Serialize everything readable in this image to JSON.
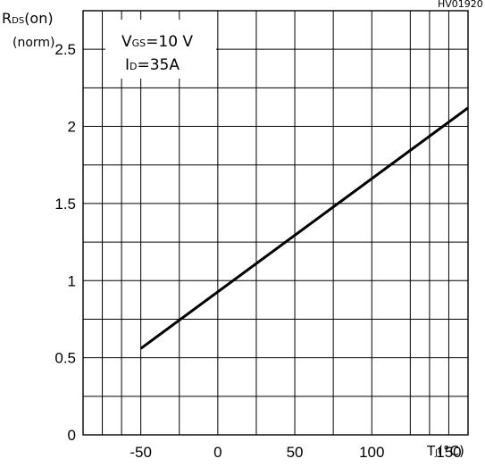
{
  "chart_data": {
    "type": "line",
    "code": "HV01920",
    "ylabel": {
      "main": "R",
      "sub": "DS",
      "paren": "(on)",
      "unit": "(norm)"
    },
    "xlabel": {
      "main": "T",
      "sub": "J",
      "unit": "(°C)"
    },
    "annotation": {
      "vgs": {
        "main": "V",
        "sub": "GS",
        "rest": "=10 V"
      },
      "id": {
        "main": "I",
        "sub": "D",
        "rest": "=35A"
      }
    },
    "xlim": [
      -87.5,
      162.5
    ],
    "ylim": [
      0,
      2.75
    ],
    "x_gridlines": [
      -75,
      -62.5,
      -50,
      -25,
      0,
      25,
      50,
      75,
      100,
      125,
      137.5,
      150
    ],
    "y_gridlines": [
      0.25,
      0.5,
      0.75,
      1.0,
      1.25,
      1.5,
      1.75,
      2.0,
      2.25,
      2.5
    ],
    "x_ticks": [
      "-50",
      "0",
      "50",
      "100",
      "150"
    ],
    "x_tick_values": [
      -50,
      0,
      50,
      100,
      150
    ],
    "y_ticks": [
      "0",
      "0.5",
      "1",
      "1.5",
      "2",
      "2.5"
    ],
    "y_tick_values": [
      0,
      0.5,
      1,
      1.5,
      2,
      2.5
    ],
    "grid": true,
    "series": [
      {
        "x": [
          -50,
          162.5
        ],
        "y": [
          0.56,
          2.12
        ]
      }
    ]
  }
}
